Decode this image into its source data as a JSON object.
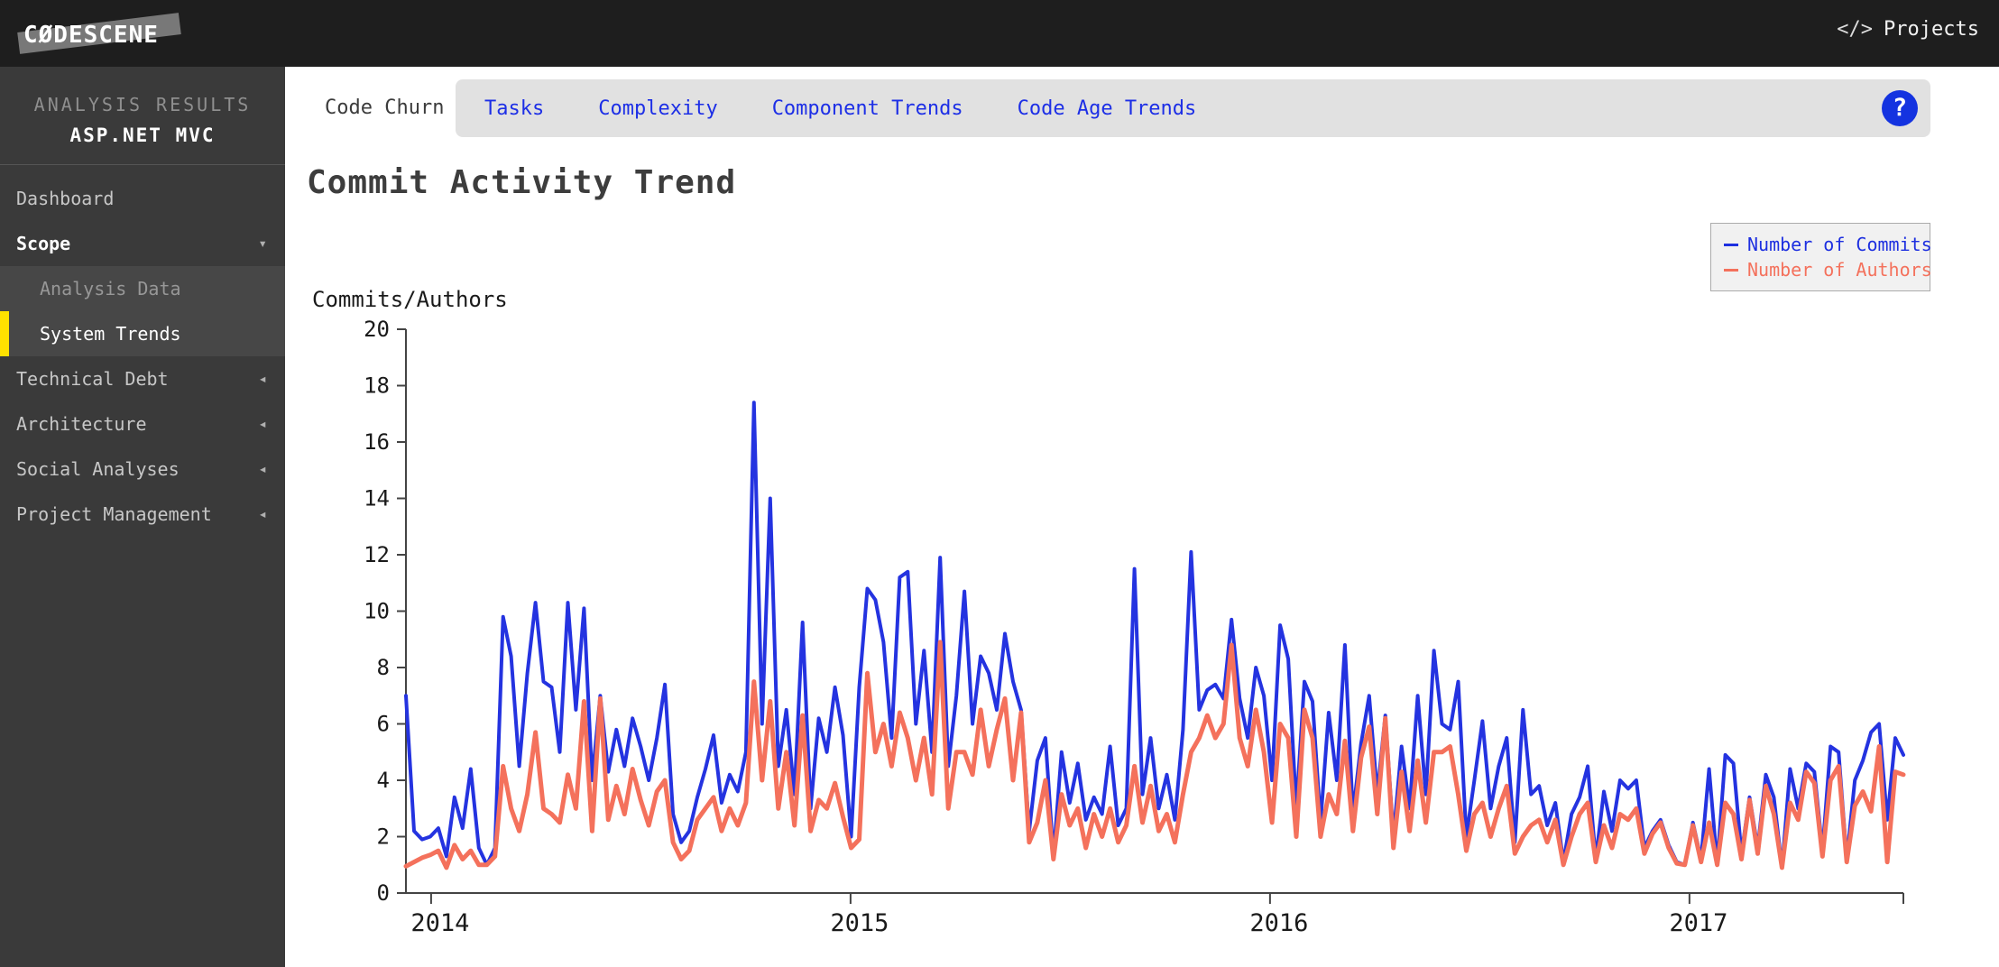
{
  "topbar": {
    "logo": "CØDESCENE",
    "projects_icon": "</>",
    "projects_label": "Projects"
  },
  "sidebar": {
    "section_label": "ANALYSIS RESULTS",
    "project_name": "ASP.NET MVC",
    "items": [
      {
        "label": "Dashboard",
        "state": "normal"
      },
      {
        "label": "Scope",
        "state": "expanded"
      },
      {
        "label": "Analysis Data",
        "state": "sub"
      },
      {
        "label": "System Trends",
        "state": "sub-active"
      },
      {
        "label": "Technical Debt",
        "state": "collapsed"
      },
      {
        "label": "Architecture",
        "state": "collapsed"
      },
      {
        "label": "Social Analyses",
        "state": "collapsed"
      },
      {
        "label": "Project Management",
        "state": "collapsed"
      }
    ]
  },
  "tabs": {
    "active": "Code Churn",
    "others": [
      "Tasks",
      "Complexity",
      "Component Trends",
      "Code Age Trends"
    ],
    "help_icon": "?"
  },
  "page": {
    "title": "Commit Activity Trend"
  },
  "colors": {
    "commits_blue": "#2433e0",
    "authors_orange": "#f4715c",
    "accent_yellow": "#ffe100",
    "tab_link_blue": "#1d2fe6"
  },
  "chart_data": {
    "type": "line",
    "title": "Commit Activity Trend",
    "xlabel": "",
    "ylabel": "Commits/Authors",
    "ylim": [
      0,
      20
    ],
    "yticks": [
      0,
      2,
      4,
      6,
      8,
      10,
      12,
      14,
      16,
      18,
      20
    ],
    "xticks": [
      2014,
      2015,
      2016,
      2017
    ],
    "x_start": 2013.94,
    "x_end": 2017.51,
    "grid": false,
    "legend_position": "top-right",
    "legend": [
      {
        "name": "Number of Commits",
        "color": "#2433e0"
      },
      {
        "name": "Number of Authors",
        "color": "#f4715c"
      }
    ],
    "series": [
      {
        "name": "Number of Commits",
        "color": "#2433e0",
        "values": [
          7.0,
          2.2,
          1.9,
          2.0,
          2.3,
          1.3,
          3.4,
          2.3,
          4.4,
          1.6,
          1.0,
          1.6,
          9.8,
          8.4,
          4.5,
          7.8,
          10.3,
          7.5,
          7.3,
          5.0,
          10.3,
          6.5,
          10.1,
          4.0,
          7.0,
          4.3,
          5.8,
          4.5,
          6.2,
          5.2,
          4.0,
          5.5,
          7.4,
          2.8,
          1.8,
          2.2,
          3.4,
          4.4,
          5.6,
          3.2,
          4.2,
          3.6,
          5.0,
          17.4,
          6.0,
          14.0,
          4.5,
          6.5,
          3.5,
          9.6,
          3.0,
          6.2,
          5.0,
          7.3,
          5.6,
          2.0,
          7.3,
          10.8,
          10.4,
          8.9,
          5.5,
          11.2,
          11.4,
          6.0,
          8.6,
          5.0,
          11.9,
          4.5,
          7.0,
          10.7,
          6.0,
          8.4,
          7.8,
          6.5,
          9.2,
          7.5,
          6.5,
          2.2,
          4.7,
          5.5,
          1.3,
          5.0,
          3.2,
          4.6,
          2.6,
          3.4,
          2.8,
          5.2,
          2.4,
          3.0,
          11.5,
          3.5,
          5.5,
          3.0,
          4.2,
          2.6,
          5.8,
          12.1,
          6.5,
          7.2,
          7.4,
          6.9,
          9.7,
          6.9,
          5.5,
          8.0,
          7.0,
          4.0,
          9.5,
          8.3,
          3.0,
          7.5,
          6.8,
          2.5,
          6.4,
          4.0,
          8.8,
          2.8,
          5.3,
          7.0,
          3.5,
          6.3,
          2.0,
          5.2,
          3.0,
          7.0,
          3.5,
          8.6,
          6.0,
          5.8,
          7.5,
          2.0,
          4.0,
          6.1,
          3.0,
          4.5,
          5.5,
          1.8,
          6.5,
          3.5,
          3.8,
          2.4,
          3.2,
          1.1,
          2.8,
          3.4,
          4.5,
          1.2,
          3.6,
          2.2,
          4.0,
          3.7,
          4.0,
          1.6,
          2.2,
          2.6,
          1.7,
          1.1,
          1.0,
          2.5,
          1.2,
          4.4,
          1.0,
          4.9,
          4.6,
          1.4,
          3.4,
          1.6,
          4.2,
          3.4,
          0.9,
          4.4,
          3.0,
          4.6,
          4.3,
          1.5,
          5.2,
          5.0,
          1.2,
          4.0,
          4.7,
          5.7,
          6.0,
          2.6,
          5.5,
          4.9
        ]
      },
      {
        "name": "Number of Authors",
        "color": "#f4715c",
        "values": [
          0.95,
          1.1,
          1.25,
          1.35,
          1.5,
          0.9,
          1.7,
          1.2,
          1.5,
          1.0,
          1.0,
          1.3,
          4.5,
          3.0,
          2.2,
          3.5,
          5.7,
          3.0,
          2.8,
          2.5,
          4.2,
          3.0,
          6.8,
          2.2,
          6.9,
          2.6,
          3.8,
          2.8,
          4.4,
          3.3,
          2.4,
          3.6,
          4.0,
          1.8,
          1.2,
          1.5,
          2.6,
          3.0,
          3.4,
          2.2,
          3.0,
          2.4,
          3.2,
          7.5,
          4.0,
          6.8,
          3.0,
          5.0,
          2.4,
          6.3,
          2.2,
          3.3,
          3.0,
          3.9,
          2.7,
          1.6,
          1.9,
          7.8,
          5.0,
          6.0,
          4.5,
          6.4,
          5.5,
          4.0,
          5.5,
          3.5,
          8.9,
          3.0,
          5.0,
          5.0,
          4.2,
          6.5,
          4.5,
          5.8,
          6.9,
          4.0,
          6.4,
          1.8,
          2.5,
          4.0,
          1.2,
          3.5,
          2.4,
          3.0,
          1.6,
          2.8,
          2.0,
          3.0,
          1.8,
          2.4,
          4.5,
          2.5,
          3.8,
          2.2,
          2.8,
          1.8,
          3.5,
          5.0,
          5.5,
          6.3,
          5.5,
          6.0,
          8.8,
          5.5,
          4.5,
          6.5,
          5.0,
          2.5,
          6.0,
          5.5,
          2.0,
          6.5,
          5.5,
          2.0,
          3.5,
          2.8,
          5.4,
          2.2,
          4.8,
          5.9,
          2.8,
          6.2,
          1.6,
          4.3,
          2.2,
          4.7,
          2.5,
          5.0,
          5.0,
          5.2,
          3.5,
          1.5,
          2.8,
          3.2,
          2.0,
          3.0,
          3.8,
          1.4,
          2.0,
          2.4,
          2.6,
          1.8,
          2.6,
          1.0,
          2.0,
          2.8,
          3.2,
          1.1,
          2.4,
          1.6,
          2.8,
          2.6,
          3.0,
          1.4,
          2.1,
          2.5,
          1.6,
          1.05,
          1.0,
          2.4,
          1.1,
          2.5,
          1.0,
          3.2,
          2.8,
          1.2,
          3.3,
          1.4,
          3.8,
          2.8,
          0.9,
          3.2,
          2.6,
          4.3,
          3.9,
          1.3,
          4.0,
          4.5,
          1.1,
          3.1,
          3.6,
          2.9,
          5.2,
          1.1,
          4.3,
          4.2
        ]
      }
    ]
  }
}
